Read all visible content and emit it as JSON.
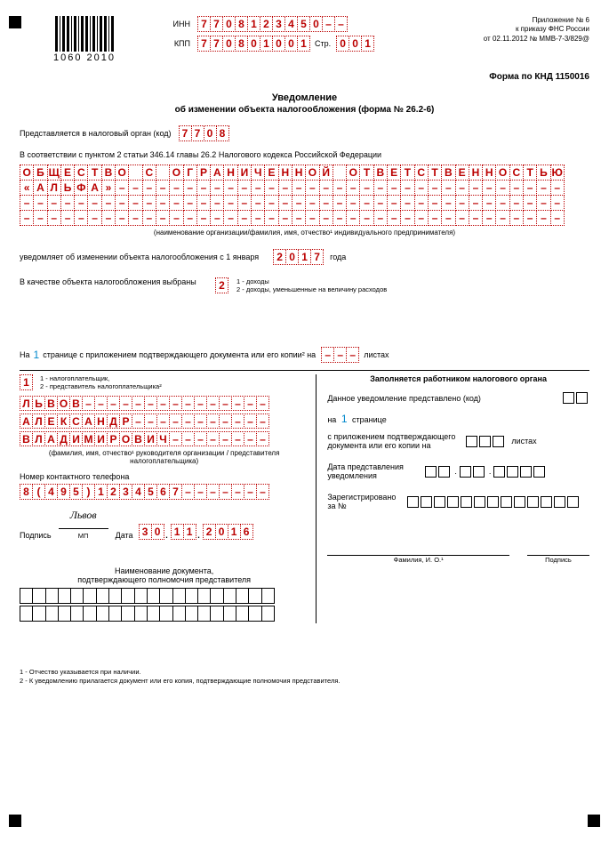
{
  "header": {
    "barcode_number": "1060 2010",
    "inn_label": "ИНН",
    "inn": [
      "7",
      "7",
      "0",
      "8",
      "1",
      "2",
      "3",
      "4",
      "5",
      "0",
      "",
      ""
    ],
    "kpp_label": "КПП",
    "kpp": [
      "7",
      "7",
      "0",
      "8",
      "0",
      "1",
      "0",
      "0",
      "1"
    ],
    "page_label": "Стр.",
    "page": [
      "0",
      "0",
      "1"
    ],
    "appendix_line1": "Приложение № 6",
    "appendix_line2": "к приказу ФНС России",
    "appendix_line3": "от 02.11.2012 № ММВ-7-3/829@",
    "form_code": "Форма по КНД 1150016"
  },
  "title": "Уведомление",
  "subtitle": "об изменении объекта налогообложения (форма № 26.2-6)",
  "tax_org": {
    "label": "Представляется в налоговый орган (код)",
    "code": [
      "7",
      "7",
      "0",
      "8"
    ]
  },
  "basis": "В соответствии с пунктом 2 статьи 346.14 главы 26.2 Налогового кодекса Российской Федерации",
  "org_name_rows": [
    [
      "О",
      "Б",
      "Щ",
      "Е",
      "С",
      "Т",
      "В",
      "О",
      "",
      "С",
      "",
      "О",
      "Г",
      "Р",
      "А",
      "Н",
      "И",
      "Ч",
      "Е",
      "Н",
      "Н",
      "О",
      "Й",
      "",
      "О",
      "Т",
      "В",
      "Е",
      "Т",
      "С",
      "Т",
      "В",
      "Е",
      "Н",
      "Н",
      "О",
      "С",
      "Т",
      "Ь",
      "Ю"
    ],
    [
      "«",
      "А",
      "Л",
      "Ь",
      "Ф",
      "А",
      "»",
      "-",
      "-",
      "-",
      "-",
      "-",
      "-",
      "-",
      "-",
      "-",
      "-",
      "-",
      "-",
      "-",
      "-",
      "-",
      "-",
      "-",
      "-",
      "-",
      "-",
      "-",
      "-",
      "-",
      "-",
      "-",
      "-",
      "-",
      "-",
      "-",
      "-",
      "-",
      "-",
      "-"
    ],
    [
      "-",
      "-",
      "-",
      "-",
      "-",
      "-",
      "-",
      "-",
      "-",
      "-",
      "-",
      "-",
      "-",
      "-",
      "-",
      "-",
      "-",
      "-",
      "-",
      "-",
      "-",
      "-",
      "-",
      "-",
      "-",
      "-",
      "-",
      "-",
      "-",
      "-",
      "-",
      "-",
      "-",
      "-",
      "-",
      "-",
      "-",
      "-",
      "-",
      "-"
    ],
    [
      "-",
      "-",
      "-",
      "-",
      "-",
      "-",
      "-",
      "-",
      "-",
      "-",
      "-",
      "-",
      "-",
      "-",
      "-",
      "-",
      "-",
      "-",
      "-",
      "-",
      "-",
      "-",
      "-",
      "-",
      "-",
      "-",
      "-",
      "-",
      "-",
      "-",
      "-",
      "-",
      "-",
      "-",
      "-",
      "-",
      "-",
      "-",
      "-",
      "-"
    ]
  ],
  "org_caption": "(наименование организации/фамилия, имя, отчество¹ индивидуального предпринимателя)",
  "change_notice": {
    "prefix": "уведомляет об изменении объекта налогообложения с 1 января",
    "year": [
      "2",
      "0",
      "1",
      "7"
    ],
    "suffix": "года"
  },
  "object_choice": {
    "label": "В качестве объекта налогообложения выбраны",
    "value": "2",
    "opt1": "1 - доходы",
    "opt2": "2 - доходы, уменьшенные на величину расходов"
  },
  "pages_line": {
    "p1": "На",
    "p1n": "1",
    "p2": "странице с приложением подтверждающего документа или его копии² на",
    "attach": [
      "",
      "",
      ""
    ],
    "p3": "листах"
  },
  "left": {
    "person_type": "1",
    "person_opts": "1 - налогоплательщик,\n2 - представитель налогоплательщика²",
    "name_rows": [
      [
        "Л",
        "Ь",
        "В",
        "О",
        "В",
        "-",
        "-",
        "-",
        "-",
        "-",
        "-",
        "-",
        "-",
        "-",
        "-",
        "-",
        "-",
        "-",
        "-",
        "-"
      ],
      [
        "А",
        "Л",
        "Е",
        "К",
        "С",
        "А",
        "Н",
        "Д",
        "Р",
        "-",
        "-",
        "-",
        "-",
        "-",
        "-",
        "-",
        "-",
        "-",
        "-",
        "-"
      ],
      [
        "В",
        "Л",
        "А",
        "Д",
        "И",
        "М",
        "И",
        "Р",
        "О",
        "В",
        "И",
        "Ч",
        "-",
        "-",
        "-",
        "-",
        "-",
        "-",
        "-",
        "-"
      ]
    ],
    "name_caption": "(фамилия, имя, отчество¹ руководителя организации / представителя\nналогоплательщика)",
    "phone_label": "Номер контактного телефона",
    "phone": [
      "8",
      "(",
      "4",
      "9",
      "5",
      ")",
      "1",
      "2",
      "3",
      "4",
      "5",
      "6",
      "7",
      "",
      "",
      "",
      "",
      "",
      "",
      ""
    ],
    "sign_label": "Подпись",
    "sign_value": "Львов",
    "mp": "МП",
    "date_label": "Дата",
    "date": [
      "3",
      "0",
      ".",
      "1",
      "1",
      ".",
      "2",
      "0",
      "1",
      "6"
    ],
    "doc_caption1": "Наименование документа,",
    "doc_caption2": "подтверждающего полномочия представителя"
  },
  "right": {
    "title": "Заполняется работником налогового органа",
    "l1": "Данное уведомление представлено (код)",
    "pages_prefix": "на",
    "pages_n": "1",
    "pages_suffix": "странице",
    "attach_label": "с приложением подтверждающего\nдокумента или его копии на",
    "attach_suffix": "листах",
    "date_label": "Дата представления\nуведомления",
    "reg_label": "Зарегистрировано\nза №",
    "fio": "Фамилия, И. О.¹",
    "sign": "Подпись"
  },
  "footnotes": {
    "f1": "1 - Отчество указывается при наличии.",
    "f2": "2 - К уведомлению прилагается документ или его копия, подтверждающие полномочия представителя."
  },
  "colors": {
    "red": "#b00020",
    "text": "#000"
  }
}
